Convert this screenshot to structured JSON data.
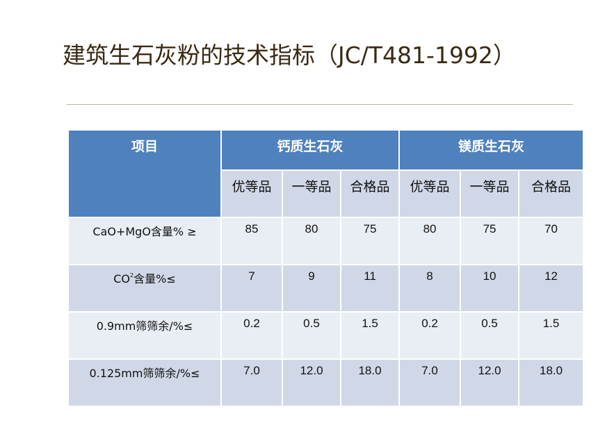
{
  "title": "建筑生石灰粉的技术指标（JC/T481-1992）",
  "table": {
    "header": {
      "item": "项目",
      "group_calcium": "钙质生石灰",
      "group_magnesium": "镁质生石灰",
      "grades": [
        "优等品",
        "一等品",
        "合格品",
        "优等品",
        "一等品",
        "合格品"
      ]
    },
    "rows": [
      {
        "label": "CaO+MgO含量% ≥",
        "values": [
          "85",
          "80",
          "75",
          "80",
          "75",
          "70"
        ]
      },
      {
        "label_prefix": "CO",
        "label_sup": "2",
        "label_suffix": "含量%≤",
        "values": [
          "7",
          "9",
          "11",
          "8",
          "10",
          "12"
        ]
      },
      {
        "label": "0.9mm筛筛余/%≤",
        "values": [
          "0.2",
          "0.5",
          "1.5",
          "0.2",
          "0.5",
          "1.5"
        ]
      },
      {
        "label": "0.125mm筛筛余/%≤",
        "values": [
          "7.0",
          "12.0",
          "18.0",
          "7.0",
          "12.0",
          "18.0"
        ]
      }
    ]
  },
  "colors": {
    "header_bg": "#4f81bd",
    "band_dark": "#d0d8e8",
    "band_light": "#e9edf4",
    "title_text": "#3a2a14"
  }
}
